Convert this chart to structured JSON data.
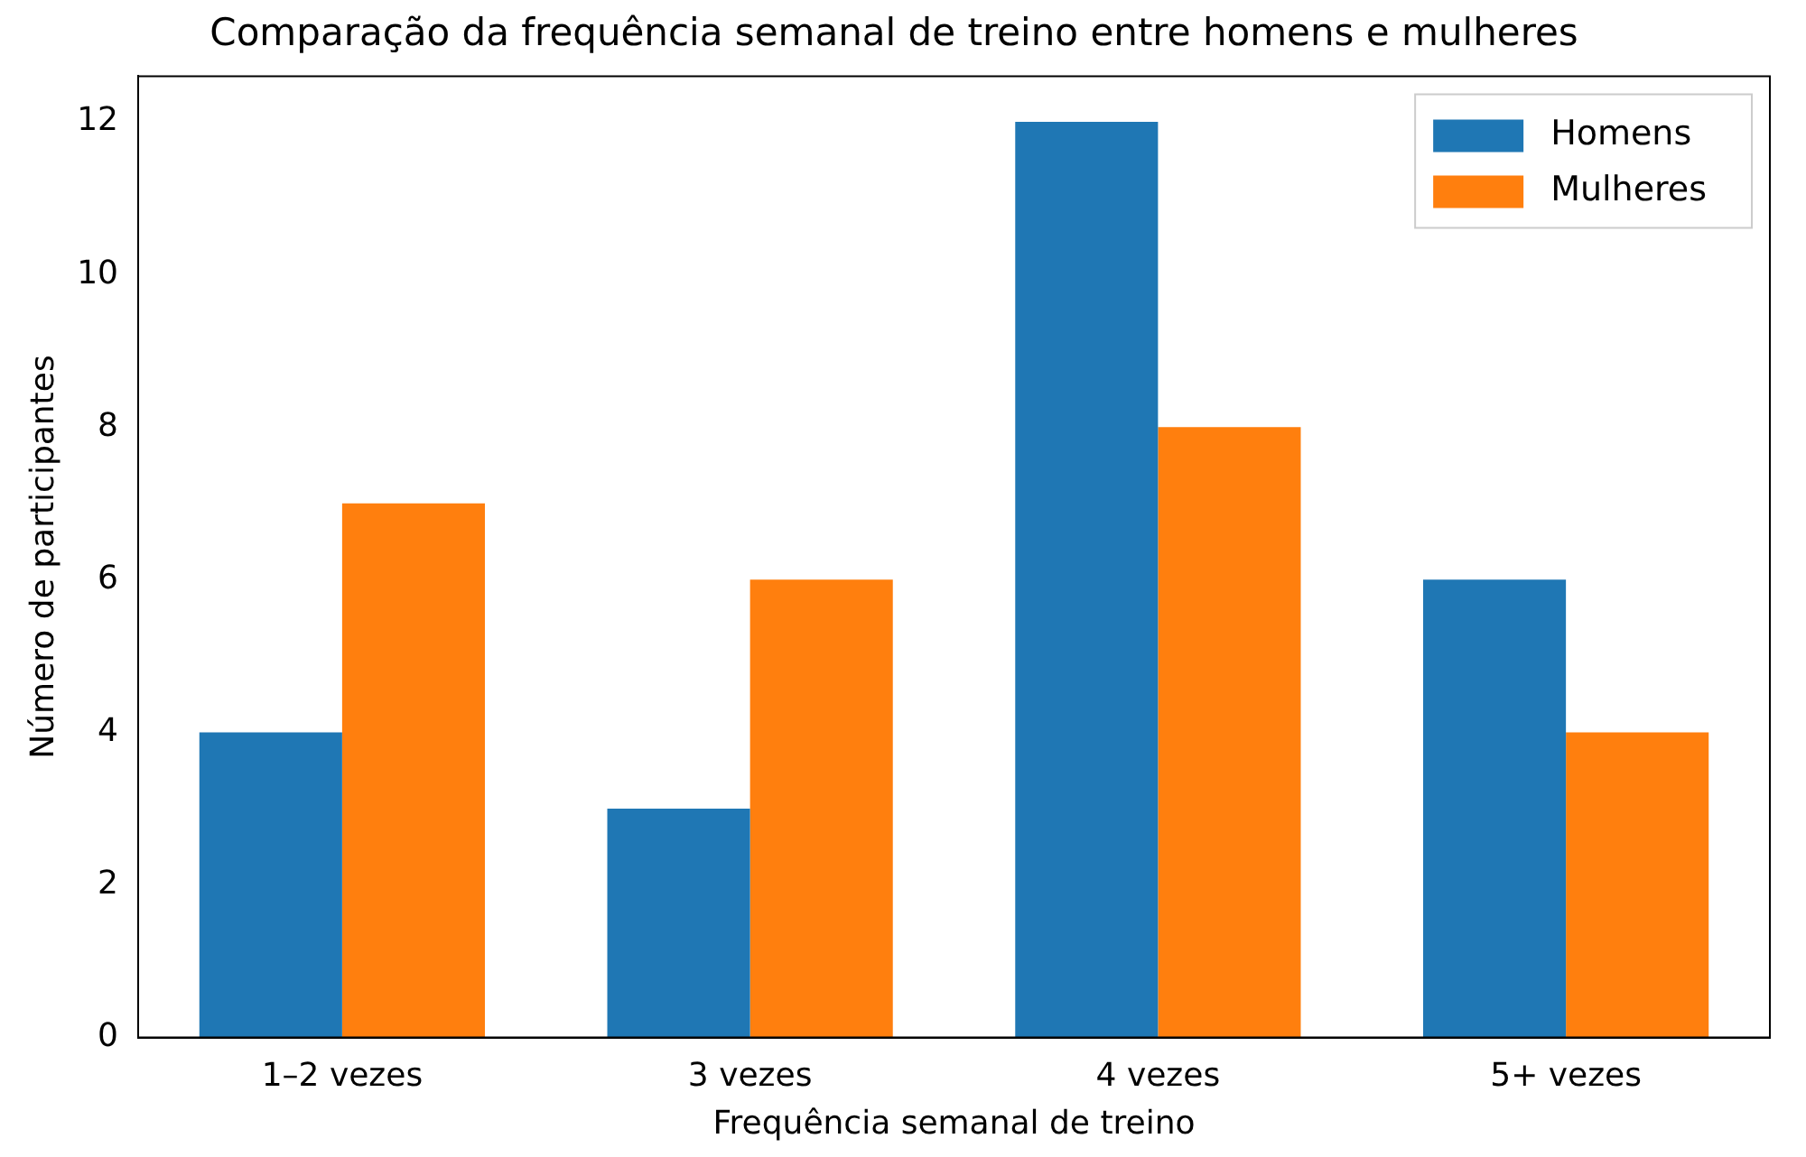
{
  "chart_data": {
    "type": "bar",
    "title": "Comparação da frequência semanal de treino entre homens e mulheres",
    "xlabel": "Frequência semanal de treino",
    "ylabel": "Número de participantes",
    "categories": [
      "1–2 vezes",
      "3 vezes",
      "4 vezes",
      "5+ vezes"
    ],
    "series": [
      {
        "name": "Homens",
        "color": "#1f77b4",
        "values": [
          4,
          3,
          12,
          6
        ]
      },
      {
        "name": "Mulheres",
        "color": "#ff7f0e",
        "values": [
          7,
          6,
          8,
          4
        ]
      }
    ],
    "ylim": [
      0,
      12.6
    ],
    "yticks": [
      0,
      2,
      4,
      6,
      8,
      10,
      12
    ],
    "grid": false,
    "legend": "top right"
  }
}
